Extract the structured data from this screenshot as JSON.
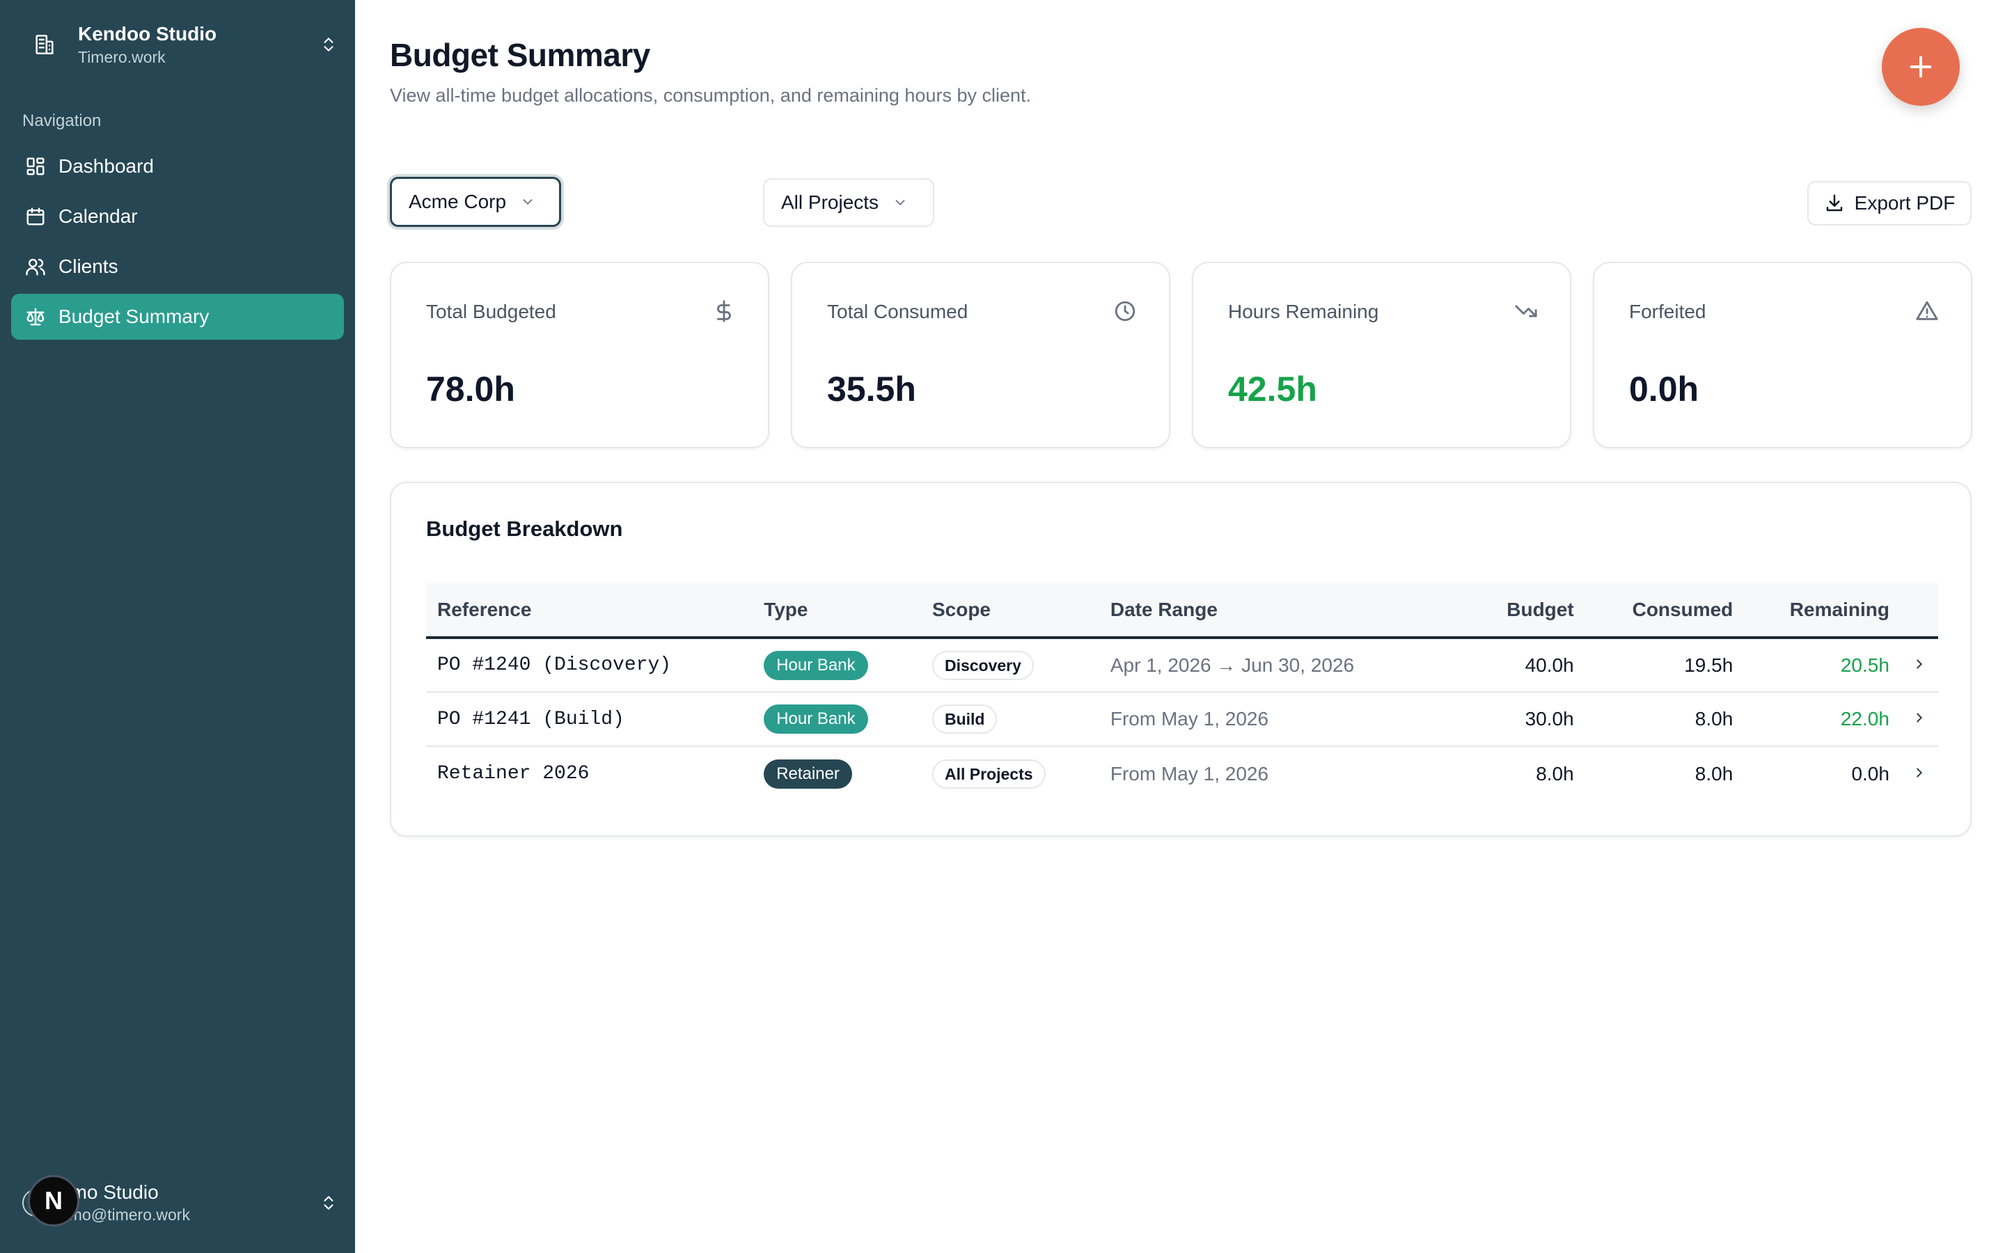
{
  "workspace": {
    "name": "Kendoo Studio",
    "domain": "Timero.work"
  },
  "nav": {
    "heading": "Navigation",
    "items": [
      {
        "label": "Dashboard",
        "icon": "dashboard-icon"
      },
      {
        "label": "Calendar",
        "icon": "calendar-icon"
      },
      {
        "label": "Clients",
        "icon": "users-icon"
      },
      {
        "label": "Budget Summary",
        "icon": "scale-icon",
        "active": true
      }
    ]
  },
  "user": {
    "name": "emo Studio",
    "email": "emo@timero.work",
    "badge": "N"
  },
  "page": {
    "title": "Budget Summary",
    "subtitle": "View all-time budget allocations, consumption, and remaining hours by client."
  },
  "filters": {
    "client": "Acme Corp",
    "project": "All Projects"
  },
  "export_label": "Export PDF",
  "stats": [
    {
      "label": "Total Budgeted",
      "value": "78.0h",
      "icon": "dollar-icon"
    },
    {
      "label": "Total Consumed",
      "value": "35.5h",
      "icon": "clock-icon"
    },
    {
      "label": "Hours Remaining",
      "value": "42.5h",
      "icon": "trending-down-icon",
      "accent": "#16a34a"
    },
    {
      "label": "Forfeited",
      "value": "0.0h",
      "icon": "warning-icon"
    }
  ],
  "breakdown": {
    "title": "Budget Breakdown",
    "columns": [
      "Reference",
      "Type",
      "Scope",
      "Date Range",
      "Budget",
      "Consumed",
      "Remaining"
    ],
    "rows": [
      {
        "reference": "PO #1240 (Discovery)",
        "type": "Hour Bank",
        "scope": "Discovery",
        "date_range": "Apr 1, 2026 → Jun 30, 2026",
        "budget": "40.0h",
        "consumed": "19.5h",
        "remaining": "20.5h"
      },
      {
        "reference": "PO #1241 (Build)",
        "type": "Hour Bank",
        "scope": "Build",
        "date_range": "From May 1, 2026",
        "budget": "30.0h",
        "consumed": "8.0h",
        "remaining": "22.0h"
      },
      {
        "reference": "Retainer 2026",
        "type": "Retainer",
        "scope": "All Projects",
        "date_range": "From May 1, 2026",
        "budget": "8.0h",
        "consumed": "8.0h",
        "remaining": "0.0h"
      }
    ]
  },
  "colors": {
    "sidebar": "#264653",
    "accent": "#2a9d8f",
    "fab": "#e76f51",
    "positive": "#16a34a"
  }
}
